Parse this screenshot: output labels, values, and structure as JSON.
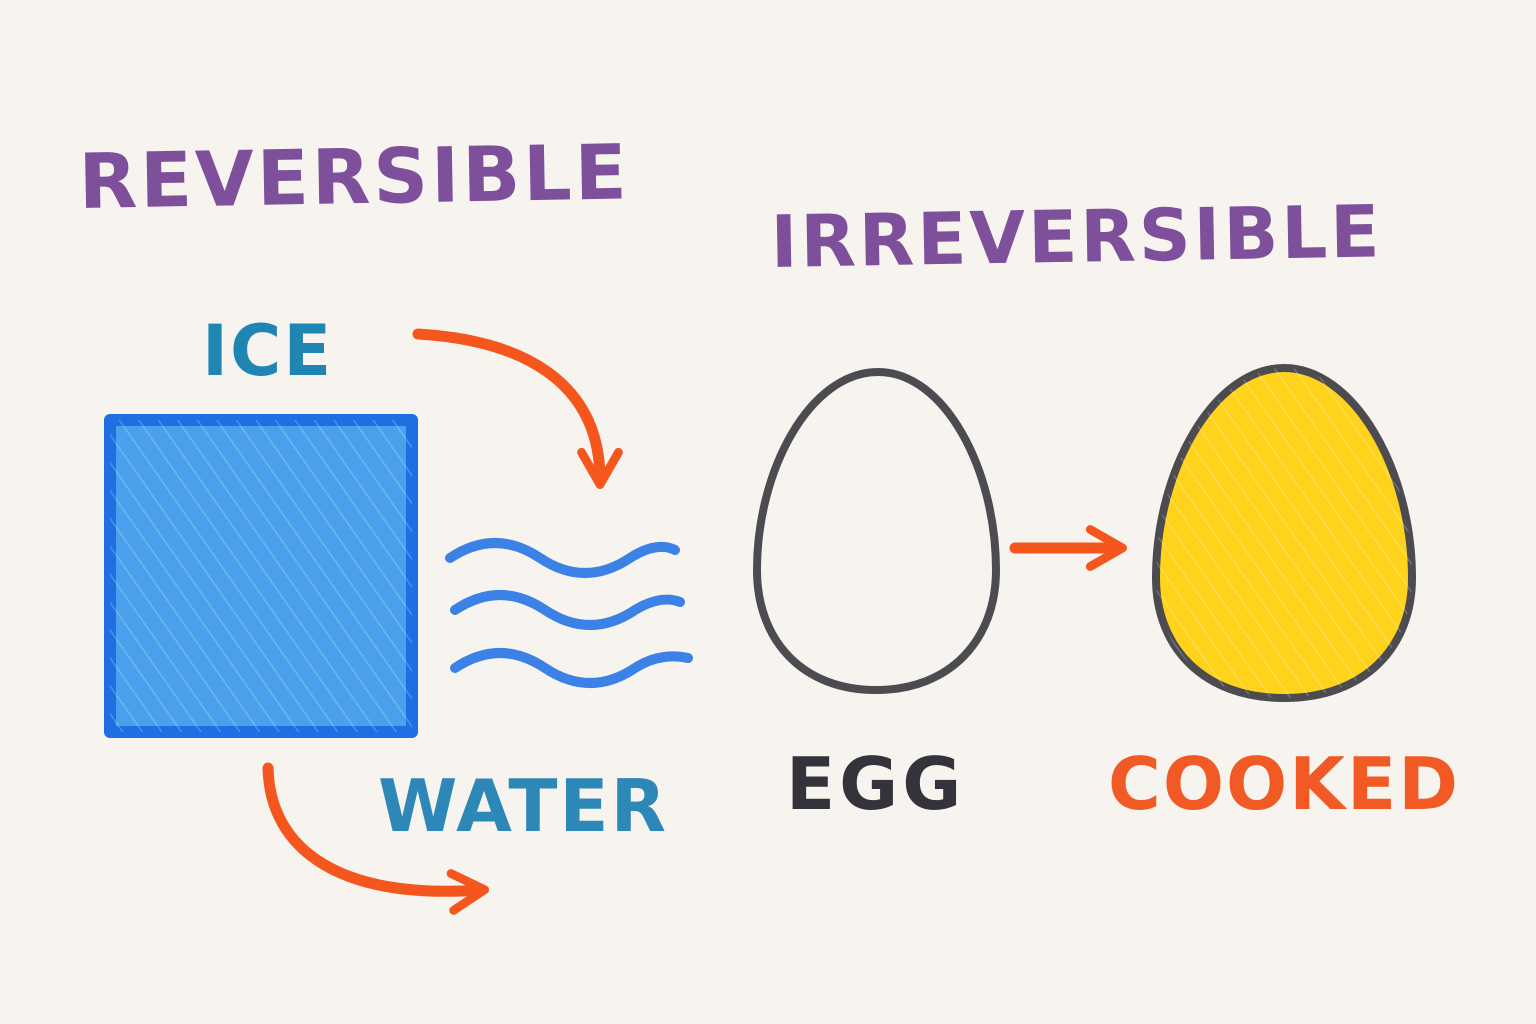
{
  "headings": {
    "reversible": "REVERSIBLE",
    "irreversible": "IRREVERSIBLE"
  },
  "labels": {
    "ice": "ICE",
    "water": "WATER",
    "egg": "EGG",
    "cooked": "COOKED"
  },
  "colors": {
    "background": "#f7f4ef",
    "heading": "#7e4f9a",
    "ice_label": "#1f86b3",
    "water_label": "#2d88b8",
    "egg_label": "#34323a",
    "cooked_label": "#f25a25",
    "ice_fill": "#4aa0ec",
    "ice_outline": "#1f6fe2",
    "water_lines": "#3c82e6",
    "arrow": "#f4561e",
    "egg_outline": "#4b4b50",
    "cooked_fill": "#ffd21c"
  }
}
